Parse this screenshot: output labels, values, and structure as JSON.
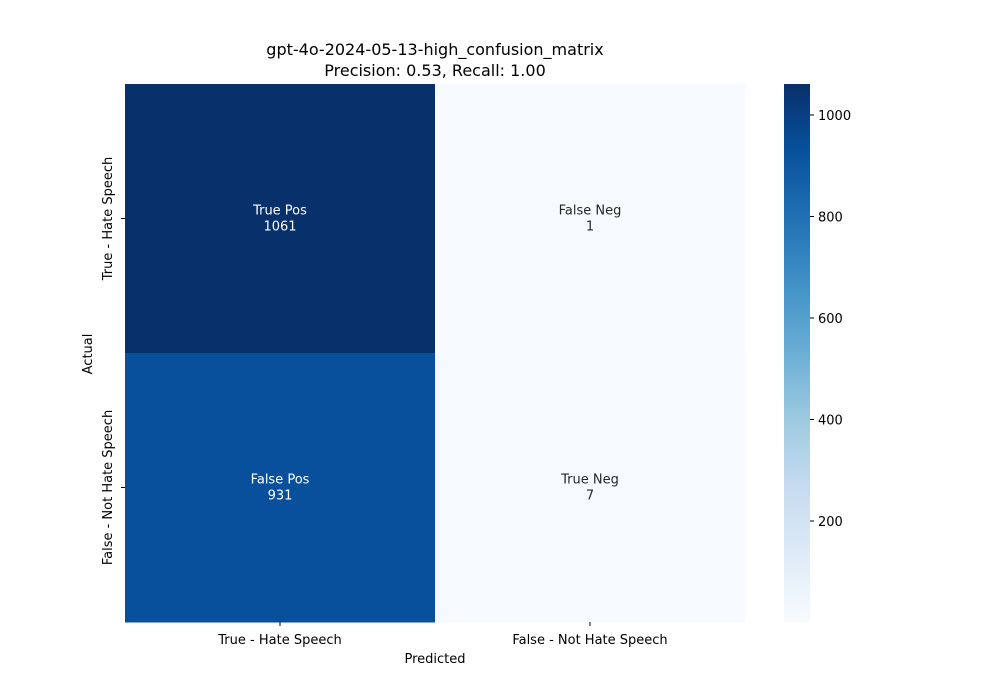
{
  "chart_data": {
    "type": "heatmap",
    "title": "gpt-4o-2024-05-13-high_confusion_matrix",
    "subtitle": "Precision: 0.53, Recall: 1.00",
    "xlabel": "Predicted",
    "ylabel": "Actual",
    "x_categories": [
      "True - Hate Speech",
      "False - Not Hate Speech"
    ],
    "y_categories": [
      "True - Hate Speech",
      "False - Not Hate Speech"
    ],
    "cells": [
      [
        {
          "label": "True Pos",
          "value": 1061
        },
        {
          "label": "False Neg",
          "value": 1
        }
      ],
      [
        {
          "label": "False Pos",
          "value": 931
        },
        {
          "label": "True Neg",
          "value": 7
        }
      ]
    ],
    "colormap": "Blues",
    "colorbar": {
      "min": 1,
      "max": 1061,
      "ticks": [
        200,
        400,
        600,
        800,
        1000
      ]
    },
    "annotation_colors": {
      "dark_cell_text": "#ffffff",
      "light_cell_text": "#262626"
    }
  }
}
